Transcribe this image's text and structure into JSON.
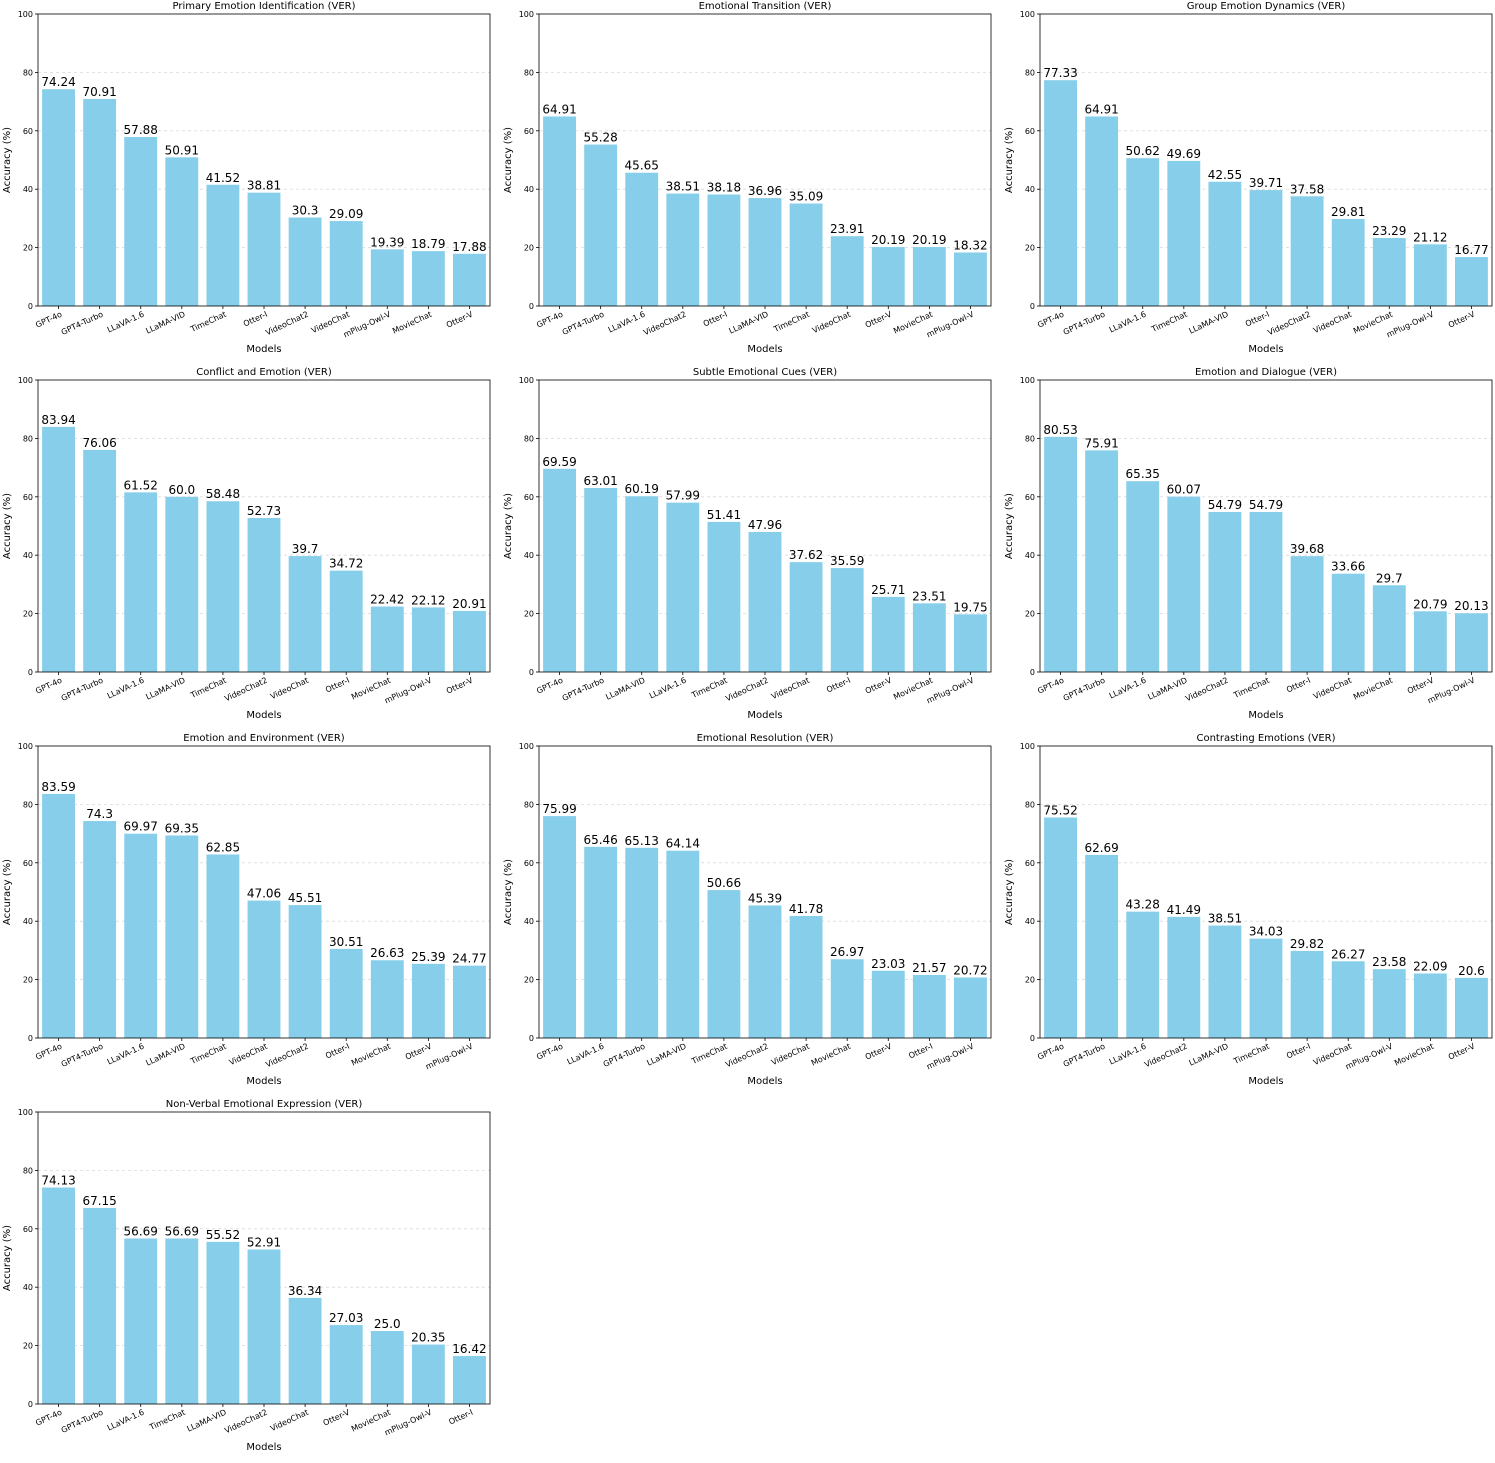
{
  "style": {
    "bar_color": "#87CEEB",
    "grid_color": "#d9d9d9",
    "axis_color": "#000000"
  },
  "chart_data": [
    {
      "type": "bar",
      "title": "Primary Emotion Identification (VER)",
      "xlabel": "Models",
      "ylabel": "Accuracy (%)",
      "ylim": [
        0,
        100
      ],
      "yticks": [
        0,
        20,
        40,
        60,
        80,
        100
      ],
      "grid": "y-dashed",
      "categories": [
        "GPT-4o",
        "GPT4-Turbo",
        "LLaVA-1.6",
        "LLaMA-VID",
        "TimeChat",
        "Otter-I",
        "VideoChat2",
        "VideoChat",
        "mPlug-Owl-V",
        "MovieChat",
        "Otter-V"
      ],
      "values": [
        74.24,
        70.91,
        57.88,
        50.91,
        41.52,
        38.81,
        30.3,
        29.09,
        19.39,
        18.79,
        17.88
      ],
      "value_labels": [
        "74.24",
        "70.91",
        "57.88",
        "50.91",
        "41.52",
        "38.81",
        "30.3",
        "29.09",
        "19.39",
        "18.79",
        "17.88"
      ]
    },
    {
      "type": "bar",
      "title": "Emotional Transition (VER)",
      "xlabel": "Models",
      "ylabel": "Accuracy (%)",
      "ylim": [
        0,
        100
      ],
      "yticks": [
        0,
        20,
        40,
        60,
        80,
        100
      ],
      "grid": "y-dashed",
      "categories": [
        "GPT-4o",
        "GPT4-Turbo",
        "LLaVA-1.6",
        "VideoChat2",
        "Otter-I",
        "LLaMA-VID",
        "TimeChat",
        "VideoChat",
        "Otter-V",
        "MovieChat",
        "mPlug-Owl-V"
      ],
      "values": [
        64.91,
        55.28,
        45.65,
        38.51,
        38.18,
        36.96,
        35.09,
        23.91,
        20.19,
        20.19,
        18.32
      ],
      "value_labels": [
        "64.91",
        "55.28",
        "45.65",
        "38.51",
        "38.18",
        "36.96",
        "35.09",
        "23.91",
        "20.19",
        "20.19",
        "18.32"
      ]
    },
    {
      "type": "bar",
      "title": "Group Emotion Dynamics (VER)",
      "xlabel": "Models",
      "ylabel": "Accuracy (%)",
      "ylim": [
        0,
        100
      ],
      "yticks": [
        0,
        20,
        40,
        60,
        80,
        100
      ],
      "grid": "y-dashed",
      "categories": [
        "GPT-4o",
        "GPT4-Turbo",
        "LLaVA-1.6",
        "TimeChat",
        "LLaMA-VID",
        "Otter-I",
        "VideoChat2",
        "VideoChat",
        "MovieChat",
        "mPlug-Owl-V",
        "Otter-V"
      ],
      "values": [
        77.33,
        64.91,
        50.62,
        49.69,
        42.55,
        39.71,
        37.58,
        29.81,
        23.29,
        21.12,
        16.77
      ],
      "value_labels": [
        "77.33",
        "64.91",
        "50.62",
        "49.69",
        "42.55",
        "39.71",
        "37.58",
        "29.81",
        "23.29",
        "21.12",
        "16.77"
      ]
    },
    {
      "type": "bar",
      "title": "Conflict and Emotion (VER)",
      "xlabel": "Models",
      "ylabel": "Accuracy (%)",
      "ylim": [
        0,
        100
      ],
      "yticks": [
        0,
        20,
        40,
        60,
        80,
        100
      ],
      "grid": "y-dashed",
      "categories": [
        "GPT-4o",
        "GPT4-Turbo",
        "LLaVA-1.6",
        "LLaMA-VID",
        "TimeChat",
        "VideoChat2",
        "VideoChat",
        "Otter-I",
        "MovieChat",
        "mPlug-Owl-V",
        "Otter-V"
      ],
      "values": [
        83.94,
        76.06,
        61.52,
        60.0,
        58.48,
        52.73,
        39.7,
        34.72,
        22.42,
        22.12,
        20.91
      ],
      "value_labels": [
        "83.94",
        "76.06",
        "61.52",
        "60.0",
        "58.48",
        "52.73",
        "39.7",
        "34.72",
        "22.42",
        "22.12",
        "20.91"
      ]
    },
    {
      "type": "bar",
      "title": "Subtle Emotional Cues (VER)",
      "xlabel": "Models",
      "ylabel": "Accuracy (%)",
      "ylim": [
        0,
        100
      ],
      "yticks": [
        0,
        20,
        40,
        60,
        80,
        100
      ],
      "grid": "y-dashed",
      "categories": [
        "GPT-4o",
        "GPT4-Turbo",
        "LLaMA-VID",
        "LLaVA-1.6",
        "TimeChat",
        "VideoChat2",
        "VideoChat",
        "Otter-I",
        "Otter-V",
        "MovieChat",
        "mPlug-Owl-V"
      ],
      "values": [
        69.59,
        63.01,
        60.19,
        57.99,
        51.41,
        47.96,
        37.62,
        35.59,
        25.71,
        23.51,
        19.75
      ],
      "value_labels": [
        "69.59",
        "63.01",
        "60.19",
        "57.99",
        "51.41",
        "47.96",
        "37.62",
        "35.59",
        "25.71",
        "23.51",
        "19.75"
      ]
    },
    {
      "type": "bar",
      "title": "Emotion and Dialogue (VER)",
      "xlabel": "Models",
      "ylabel": "Accuracy (%)",
      "ylim": [
        0,
        100
      ],
      "yticks": [
        0,
        20,
        40,
        60,
        80,
        100
      ],
      "grid": "y-dashed",
      "categories": [
        "GPT-4o",
        "GPT4-Turbo",
        "LLaVA-1.6",
        "LLaMA-VID",
        "VideoChat2",
        "TimeChat",
        "Otter-I",
        "VideoChat",
        "MovieChat",
        "Otter-V",
        "mPlug-Owl-V"
      ],
      "values": [
        80.53,
        75.91,
        65.35,
        60.07,
        54.79,
        54.79,
        39.68,
        33.66,
        29.7,
        20.79,
        20.13
      ],
      "value_labels": [
        "80.53",
        "75.91",
        "65.35",
        "60.07",
        "54.79",
        "54.79",
        "39.68",
        "33.66",
        "29.7",
        "20.79",
        "20.13"
      ]
    },
    {
      "type": "bar",
      "title": "Emotion and Environment (VER)",
      "xlabel": "Models",
      "ylabel": "Accuracy (%)",
      "ylim": [
        0,
        100
      ],
      "yticks": [
        0,
        20,
        40,
        60,
        80,
        100
      ],
      "grid": "y-dashed",
      "categories": [
        "GPT-4o",
        "GPT4-Turbo",
        "LLaVA-1.6",
        "LLaMA-VID",
        "TimeChat",
        "VideoChat",
        "VideoChat2",
        "Otter-I",
        "MovieChat",
        "Otter-V",
        "mPlug-Owl-V"
      ],
      "values": [
        83.59,
        74.3,
        69.97,
        69.35,
        62.85,
        47.06,
        45.51,
        30.51,
        26.63,
        25.39,
        24.77
      ],
      "value_labels": [
        "83.59",
        "74.3",
        "69.97",
        "69.35",
        "62.85",
        "47.06",
        "45.51",
        "30.51",
        "26.63",
        "25.39",
        "24.77"
      ]
    },
    {
      "type": "bar",
      "title": "Emotional Resolution (VER)",
      "xlabel": "Models",
      "ylabel": "Accuracy (%)",
      "ylim": [
        0,
        100
      ],
      "yticks": [
        0,
        20,
        40,
        60,
        80,
        100
      ],
      "grid": "y-dashed",
      "categories": [
        "GPT-4o",
        "LLaVA-1.6",
        "GPT4-Turbo",
        "LLaMA-VID",
        "TimeChat",
        "VideoChat2",
        "VideoChat",
        "MovieChat",
        "Otter-V",
        "Otter-I",
        "mPlug-Owl-V"
      ],
      "values": [
        75.99,
        65.46,
        65.13,
        64.14,
        50.66,
        45.39,
        41.78,
        26.97,
        23.03,
        21.57,
        20.72
      ],
      "value_labels": [
        "75.99",
        "65.46",
        "65.13",
        "64.14",
        "50.66",
        "45.39",
        "41.78",
        "26.97",
        "23.03",
        "21.57",
        "20.72"
      ]
    },
    {
      "type": "bar",
      "title": "Contrasting Emotions (VER)",
      "xlabel": "Models",
      "ylabel": "Accuracy (%)",
      "ylim": [
        0,
        100
      ],
      "yticks": [
        0,
        20,
        40,
        60,
        80,
        100
      ],
      "grid": "y-dashed",
      "categories": [
        "GPT-4o",
        "GPT4-Turbo",
        "LLaVA-1.6",
        "VideoChat2",
        "LLaMA-VID",
        "TimeChat",
        "Otter-I",
        "VideoChat",
        "mPlug-Owl-V",
        "MovieChat",
        "Otter-V"
      ],
      "values": [
        75.52,
        62.69,
        43.28,
        41.49,
        38.51,
        34.03,
        29.82,
        26.27,
        23.58,
        22.09,
        20.6
      ],
      "value_labels": [
        "75.52",
        "62.69",
        "43.28",
        "41.49",
        "38.51",
        "34.03",
        "29.82",
        "26.27",
        "23.58",
        "22.09",
        "20.6"
      ]
    },
    {
      "type": "bar",
      "title": "Non-Verbal Emotional Expression (VER)",
      "xlabel": "Models",
      "ylabel": "Accuracy (%)",
      "ylim": [
        0,
        100
      ],
      "yticks": [
        0,
        20,
        40,
        60,
        80,
        100
      ],
      "grid": "y-dashed",
      "categories": [
        "GPT-4o",
        "GPT4-Turbo",
        "LLaVA-1.6",
        "TimeChat",
        "LLaMA-VID",
        "VideoChat2",
        "VideoChat",
        "Otter-V",
        "MovieChat",
        "mPlug-Owl-V",
        "Otter-I"
      ],
      "values": [
        74.13,
        67.15,
        56.69,
        56.69,
        55.52,
        52.91,
        36.34,
        27.03,
        25.0,
        20.35,
        16.42
      ],
      "value_labels": [
        "74.13",
        "67.15",
        "56.69",
        "56.69",
        "55.52",
        "52.91",
        "36.34",
        "27.03",
        "25.0",
        "20.35",
        "16.42"
      ]
    }
  ]
}
